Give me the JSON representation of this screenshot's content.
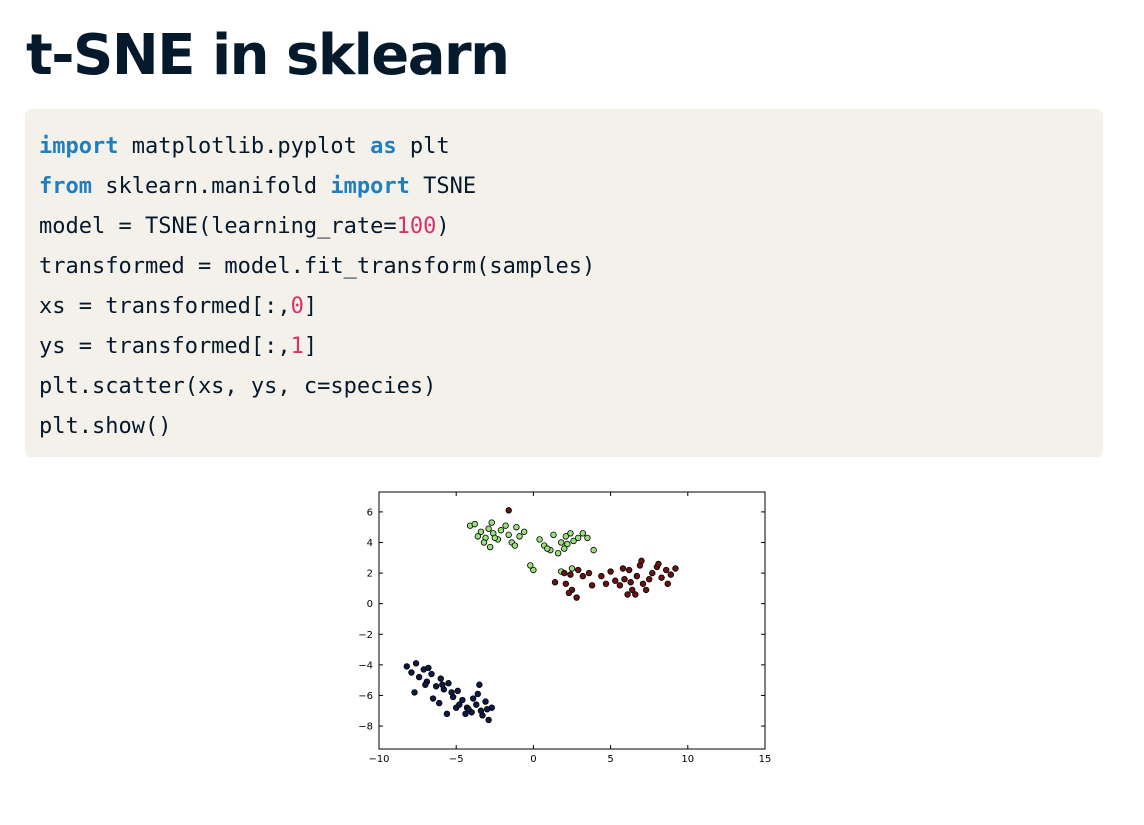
{
  "title": "t-SNE in sklearn",
  "code": [
    [
      {
        "t": "import",
        "k": "kw"
      },
      {
        "t": " matplotlib.pyplot "
      },
      {
        "t": "as",
        "k": "kw"
      },
      {
        "t": " plt"
      }
    ],
    [
      {
        "t": "from",
        "k": "kw"
      },
      {
        "t": " sklearn.manifold "
      },
      {
        "t": "import",
        "k": "kw"
      },
      {
        "t": " TSNE"
      }
    ],
    [
      {
        "t": "model = TSNE(learning_rate="
      },
      {
        "t": "100",
        "k": "num"
      },
      {
        "t": ")"
      }
    ],
    [
      {
        "t": "transformed = model.fit_transform(samples)"
      }
    ],
    [
      {
        "t": "xs = transformed[:,"
      },
      {
        "t": "0",
        "k": "num"
      },
      {
        "t": "]"
      }
    ],
    [
      {
        "t": "ys = transformed[:,"
      },
      {
        "t": "1",
        "k": "num"
      },
      {
        "t": "]"
      }
    ],
    [
      {
        "t": "plt.scatter(xs, ys, c=species)"
      }
    ],
    [
      {
        "t": "plt.show()"
      }
    ]
  ],
  "chart_data": {
    "type": "scatter",
    "xlim": [
      -10,
      15
    ],
    "ylim": [
      -9.5,
      7.3
    ],
    "xticks": [
      -10,
      -5,
      0,
      5,
      10,
      15
    ],
    "yticks": [
      -8,
      -6,
      -4,
      -2,
      0,
      2,
      4,
      6
    ],
    "xtick_labels": [
      "−10",
      "−5",
      "0",
      "5",
      "10",
      "15"
    ],
    "ytick_labels": [
      "−8",
      "−6",
      "−4",
      "−2",
      "0",
      "2",
      "4",
      "6"
    ],
    "grid": false,
    "series": [
      {
        "color": "#99e27a",
        "points": [
          [
            -4.1,
            5.1
          ],
          [
            -3.8,
            5.2
          ],
          [
            -3.4,
            4.7
          ],
          [
            -3.1,
            4.3
          ],
          [
            -2.9,
            4.9
          ],
          [
            -2.7,
            5.3
          ],
          [
            -2.6,
            4.6
          ],
          [
            -2.3,
            4.2
          ],
          [
            -2.1,
            4.8
          ],
          [
            -1.8,
            5.1
          ],
          [
            -1.6,
            4.5
          ],
          [
            -1.4,
            4.0
          ],
          [
            -1.1,
            5.0
          ],
          [
            -0.9,
            4.4
          ],
          [
            -0.6,
            4.7
          ],
          [
            -3.2,
            4.0
          ],
          [
            -2.8,
            3.7
          ],
          [
            -1.2,
            3.8
          ],
          [
            0.4,
            4.2
          ],
          [
            0.7,
            3.8
          ],
          [
            1.1,
            3.5
          ],
          [
            1.3,
            4.5
          ],
          [
            1.8,
            4.0
          ],
          [
            2.1,
            4.4
          ],
          [
            2.4,
            4.6
          ],
          [
            2.6,
            4.1
          ],
          [
            2.9,
            4.3
          ],
          [
            3.2,
            4.6
          ],
          [
            3.5,
            4.3
          ],
          [
            2.0,
            3.6
          ],
          [
            1.6,
            3.3
          ],
          [
            3.9,
            3.5
          ],
          [
            -0.2,
            2.5
          ],
          [
            0.0,
            2.2
          ],
          [
            1.8,
            2.1
          ],
          [
            2.5,
            2.3
          ],
          [
            -2.5,
            4.3
          ],
          [
            -3.6,
            4.4
          ],
          [
            2.2,
            3.9
          ],
          [
            0.9,
            3.6
          ]
        ]
      },
      {
        "color": "#6b1111",
        "points": [
          [
            -1.6,
            6.1
          ],
          [
            2.0,
            2.0
          ],
          [
            2.4,
            1.9
          ],
          [
            2.9,
            2.2
          ],
          [
            3.2,
            1.8
          ],
          [
            3.6,
            2.0
          ],
          [
            2.1,
            1.3
          ],
          [
            1.4,
            1.4
          ],
          [
            2.5,
            0.9
          ],
          [
            2.3,
            0.7
          ],
          [
            2.8,
            0.4
          ],
          [
            3.8,
            1.2
          ],
          [
            4.4,
            1.8
          ],
          [
            5.0,
            2.1
          ],
          [
            5.3,
            1.5
          ],
          [
            5.6,
            1.2
          ],
          [
            5.9,
            1.6
          ],
          [
            6.2,
            2.2
          ],
          [
            6.4,
            0.9
          ],
          [
            6.7,
            1.8
          ],
          [
            6.9,
            2.5
          ],
          [
            7.1,
            1.3
          ],
          [
            7.3,
            0.9
          ],
          [
            7.5,
            1.6
          ],
          [
            7.7,
            2.0
          ],
          [
            8.0,
            2.4
          ],
          [
            8.3,
            1.7
          ],
          [
            8.6,
            2.2
          ],
          [
            8.9,
            1.9
          ],
          [
            9.2,
            2.3
          ],
          [
            6.1,
            0.6
          ],
          [
            6.6,
            0.6
          ],
          [
            7.0,
            2.8
          ],
          [
            8.1,
            2.6
          ],
          [
            5.8,
            2.3
          ],
          [
            4.7,
            1.3
          ],
          [
            6.3,
            1.4
          ],
          [
            8.7,
            1.3
          ]
        ]
      },
      {
        "color": "#0c1a45",
        "points": [
          [
            -8.2,
            -4.1
          ],
          [
            -7.9,
            -4.5
          ],
          [
            -7.6,
            -3.9
          ],
          [
            -7.4,
            -4.8
          ],
          [
            -7.1,
            -4.3
          ],
          [
            -6.9,
            -5.1
          ],
          [
            -6.6,
            -4.6
          ],
          [
            -6.3,
            -5.4
          ],
          [
            -6.0,
            -4.9
          ],
          [
            -5.8,
            -5.6
          ],
          [
            -5.5,
            -5.2
          ],
          [
            -5.2,
            -6.1
          ],
          [
            -4.9,
            -5.7
          ],
          [
            -4.6,
            -6.3
          ],
          [
            -4.3,
            -6.8
          ],
          [
            -4.0,
            -7.1
          ],
          [
            -3.7,
            -6.6
          ],
          [
            -3.4,
            -7.0
          ],
          [
            -3.1,
            -6.4
          ],
          [
            -2.9,
            -7.6
          ],
          [
            -2.7,
            -6.8
          ],
          [
            -7.7,
            -5.8
          ],
          [
            -7.0,
            -5.3
          ],
          [
            -6.5,
            -6.2
          ],
          [
            -6.1,
            -6.5
          ],
          [
            -5.6,
            -7.2
          ],
          [
            -5.3,
            -5.8
          ],
          [
            -4.8,
            -6.6
          ],
          [
            -4.4,
            -7.2
          ],
          [
            -3.9,
            -6.2
          ],
          [
            -3.5,
            -5.3
          ],
          [
            -3.3,
            -7.3
          ],
          [
            -3.0,
            -6.9
          ],
          [
            -6.8,
            -4.2
          ],
          [
            -5.9,
            -5.3
          ],
          [
            -5.0,
            -6.8
          ],
          [
            -3.6,
            -5.9
          ],
          [
            -4.2,
            -6.9
          ]
        ]
      }
    ]
  }
}
